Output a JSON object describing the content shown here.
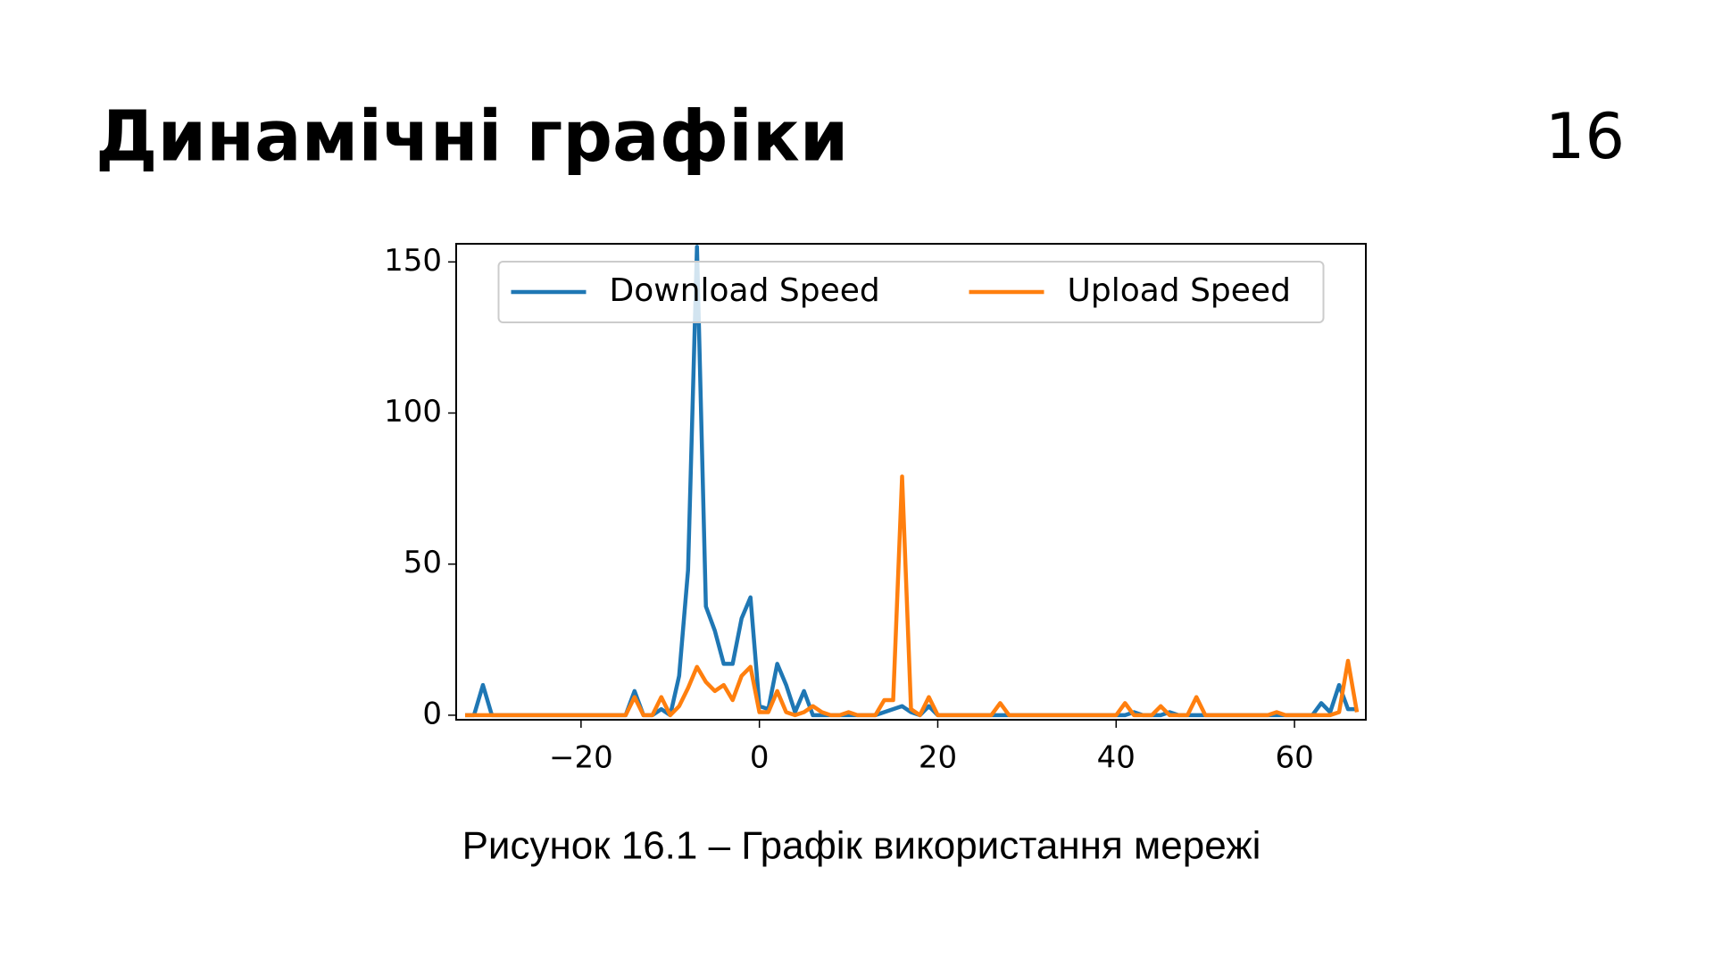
{
  "slide": {
    "title": "Динамічні графіки",
    "page_number": "16",
    "caption": "Рисунок 16.1 – Графік використання мережі"
  },
  "chart_data": {
    "type": "line",
    "x": [
      -33,
      -32,
      -31,
      -30,
      -29,
      -28,
      -27,
      -26,
      -25,
      -24,
      -23,
      -22,
      -21,
      -20,
      -19,
      -18,
      -17,
      -16,
      -15,
      -14,
      -13,
      -12,
      -11,
      -10,
      -9,
      -8,
      -7,
      -6,
      -5,
      -4,
      -3,
      -2,
      -1,
      0,
      1,
      2,
      3,
      4,
      5,
      6,
      7,
      8,
      9,
      10,
      11,
      12,
      13,
      14,
      15,
      16,
      17,
      18,
      19,
      20,
      21,
      22,
      23,
      24,
      25,
      26,
      27,
      28,
      29,
      30,
      31,
      32,
      33,
      34,
      35,
      36,
      37,
      38,
      39,
      40,
      41,
      42,
      43,
      44,
      45,
      46,
      47,
      48,
      49,
      50,
      51,
      52,
      53,
      54,
      55,
      56,
      57,
      58,
      59,
      60,
      61,
      62,
      63,
      64,
      65,
      66,
      67
    ],
    "series": [
      {
        "name": "Download Speed",
        "color": "#1f77b4",
        "values": [
          0,
          0,
          10,
          0,
          0,
          0,
          0,
          0,
          0,
          0,
          0,
          0,
          0,
          0,
          0,
          0,
          0,
          0,
          0,
          8,
          0,
          0,
          2,
          0,
          13,
          48,
          155,
          36,
          28,
          17,
          17,
          32,
          39,
          3,
          2,
          17,
          10,
          1,
          8,
          0,
          0,
          0,
          0,
          0,
          0,
          0,
          0,
          1,
          2,
          3,
          1,
          0,
          3,
          0,
          0,
          0,
          0,
          0,
          0,
          0,
          0,
          0,
          0,
          0,
          0,
          0,
          0,
          0,
          0,
          0,
          0,
          0,
          0,
          0,
          0,
          1,
          0,
          0,
          0,
          1,
          0,
          0,
          0,
          0,
          0,
          0,
          0,
          0,
          0,
          0,
          0,
          0,
          0,
          0,
          0,
          0,
          4,
          1,
          10,
          2,
          2
        ]
      },
      {
        "name": "Upload Speed",
        "color": "#ff7f0e",
        "values": [
          0,
          0,
          0,
          0,
          0,
          0,
          0,
          0,
          0,
          0,
          0,
          0,
          0,
          0,
          0,
          0,
          0,
          0,
          0,
          6,
          0,
          0,
          6,
          0,
          3,
          9,
          16,
          11,
          8,
          10,
          5,
          13,
          16,
          1,
          1,
          8,
          1,
          0,
          1,
          3,
          1,
          0,
          0,
          1,
          0,
          0,
          0,
          5,
          5,
          79,
          2,
          0,
          6,
          0,
          0,
          0,
          0,
          0,
          0,
          0,
          4,
          0,
          0,
          0,
          0,
          0,
          0,
          0,
          0,
          0,
          0,
          0,
          0,
          0,
          4,
          0,
          0,
          0,
          3,
          0,
          0,
          0,
          6,
          0,
          0,
          0,
          0,
          0,
          0,
          0,
          0,
          1,
          0,
          0,
          0,
          0,
          0,
          0,
          1,
          18,
          1
        ]
      }
    ],
    "xlim": [
      -34,
      68
    ],
    "ylim": [
      -1.5,
      156
    ],
    "xticks": [
      {
        "value": -20,
        "label": "−20"
      },
      0,
      20,
      40,
      60
    ],
    "yticks": [
      0,
      50,
      100,
      150
    ],
    "legend": "upper center"
  }
}
